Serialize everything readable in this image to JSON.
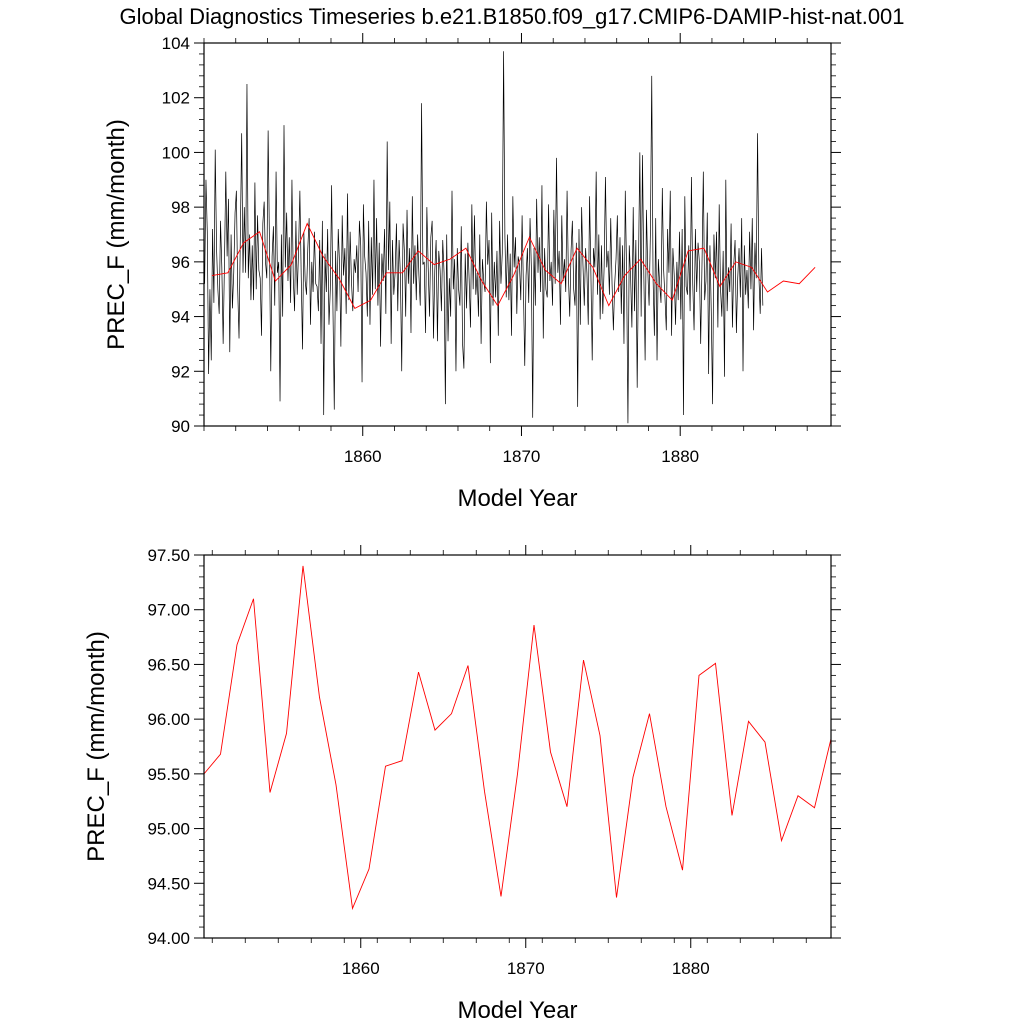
{
  "page": {
    "title": "Global Diagnostics Timeseries b.e21.B1850.f09_g17.CMIP6-DAMIP-hist-nat.001"
  },
  "chart_data": [
    {
      "type": "line",
      "title": "",
      "xlabel": "Model Year",
      "ylabel": "PREC_F (mm/month)",
      "xlim": [
        1850,
        1889.5
      ],
      "ylim": [
        90,
        104
      ],
      "x_ticks": [
        1860,
        1870,
        1880
      ],
      "x_tick_labels": [
        "1860",
        "1870",
        "1880"
      ],
      "y_ticks": [
        90,
        92,
        94,
        96,
        98,
        100,
        102,
        104
      ],
      "y_tick_labels": [
        "90",
        "92",
        "94",
        "96",
        "98",
        "100",
        "102",
        "104"
      ],
      "grid": false,
      "series": [
        {
          "kind": "monthly",
          "color": "#000000",
          "start": 1850.04,
          "step": 0.0833333,
          "values": [
            95.2,
            99.0,
            97.1,
            91.9,
            95.0,
            92.4,
            97.2,
            94.5,
            100.1,
            96.5,
            95.0,
            94.1,
            97.5,
            95.8,
            93.0,
            96.0,
            99.3,
            96.2,
            98.3,
            92.7,
            97.0,
            94.3,
            95.6,
            97.8,
            98.6,
            95.0,
            93.2,
            97.0,
            100.7,
            95.6,
            98.0,
            95.6,
            102.5,
            95.4,
            97.0,
            94.6,
            96.6,
            94.6,
            98.9,
            95.0,
            97.7,
            95.7,
            95.4,
            93.3,
            97.4,
            98.2,
            96.0,
            95.4,
            100.8,
            96.7,
            92.0,
            96.2,
            97.3,
            94.4,
            99.3,
            95.6,
            96.0,
            90.9,
            97.0,
            94.0,
            101.0,
            95.8,
            97.8,
            95.3,
            96.9,
            94.5,
            99.0,
            95.4,
            94.2,
            97.5,
            94.8,
            96.4,
            98.6,
            95.5,
            92.8,
            97.1,
            95.3,
            94.8,
            96.5,
            97.6,
            93.7,
            96.0,
            94.9,
            97.1,
            95.2,
            95.1,
            94.2,
            96.8,
            93.0,
            97.5,
            90.4,
            96.3,
            94.9,
            97.2,
            93.7,
            95.0,
            98.8,
            94.3,
            90.6,
            96.4,
            94.2,
            97.2,
            95.9,
            92.9,
            97.7,
            95.5,
            96.5,
            94.1,
            98.5,
            94.6,
            97.1,
            95.3,
            94.2,
            96.1,
            95.6,
            96.6,
            94.9,
            97.5,
            96.6,
            91.6,
            98.1,
            96.2,
            95.6,
            94.0,
            97.5,
            93.7,
            96.9,
            94.8,
            99.0,
            95.0,
            97.6,
            94.4,
            96.7,
            92.9,
            96.3,
            95.3,
            97.2,
            94.1,
            100.4,
            95.7,
            98.2,
            93.0,
            96.8,
            94.8,
            95.6,
            97.4,
            94.2,
            96.8,
            95.5,
            92.0,
            97.4,
            96.4,
            94.0,
            97.9,
            95.2,
            96.5,
            93.4,
            98.4,
            95.2,
            96.6,
            94.6,
            97.0,
            95.5,
            94.4,
            101.8,
            95.9,
            96.0,
            93.4,
            98.0,
            95.8,
            94.0,
            96.9,
            97.5,
            93.2,
            95.7,
            96.8,
            93.1,
            96.4,
            95.7,
            94.2,
            96.8,
            95.6,
            90.8,
            97.0,
            93.1,
            95.4,
            94.0,
            98.6,
            95.0,
            96.1,
            92.0,
            96.5,
            95.0,
            94.4,
            97.3,
            93.0,
            92.1,
            96.3,
            94.3,
            96.7,
            95.3,
            93.6,
            98.1,
            95.0,
            97.7,
            94.8,
            95.6,
            94.0,
            97.0,
            93.0,
            96.1,
            95.3,
            94.9,
            98.2,
            95.9,
            96.8,
            92.3,
            97.8,
            94.4,
            96.0,
            94.7,
            96.4,
            93.3,
            97.5,
            95.2,
            96.3,
            103.7,
            96.9,
            94.7,
            97.0,
            94.6,
            96.3,
            93.3,
            98.4,
            95.8,
            96.9,
            94.1,
            96.2,
            95.9,
            94.6,
            97.7,
            95.0,
            92.2,
            95.5,
            96.5,
            94.5,
            97.6,
            95.8,
            90.3,
            96.5,
            94.4,
            98.3,
            95.6,
            96.9,
            94.9,
            98.8,
            93.2,
            96.5,
            95.0,
            94.7,
            98.1,
            95.3,
            96.0,
            94.4,
            97.9,
            95.2,
            99.8,
            95.6,
            96.4,
            93.7,
            97.7,
            95.3,
            96.1,
            94.9,
            98.6,
            95.5,
            94.0,
            96.4,
            97.5,
            95.0,
            94.4,
            96.7,
            90.7,
            97.2,
            93.7,
            98.0,
            95.9,
            94.4,
            96.5,
            95.6,
            93.7,
            98.4,
            95.6,
            92.4,
            96.5,
            95.8,
            99.3,
            94.8,
            97.0,
            93.9,
            96.6,
            94.1,
            95.8,
            99.1,
            95.8,
            96.4,
            94.8,
            97.6,
            95.2,
            93.5,
            95.2,
            96.1,
            97.7,
            94.9,
            96.9,
            94.1,
            96.6,
            93.0,
            98.6,
            95.6,
            90.1,
            96.6,
            95.5,
            93.6,
            98.0,
            94.2,
            96.8,
            91.4,
            96.0,
            100.0,
            94.0,
            99.9,
            95.6,
            92.4,
            97.9,
            95.7,
            94.4,
            97.1,
            102.8,
            95.4,
            93.3,
            97.6,
            92.4,
            96.1,
            95.2,
            94.5,
            98.7,
            95.7,
            94.7,
            93.5,
            97.2,
            95.6,
            98.6,
            93.3,
            96.5,
            95.5,
            93.7,
            96.0,
            94.6,
            97.1,
            93.9,
            97.2,
            90.4,
            98.4,
            95.1,
            94.8,
            96.6,
            94.2,
            99.1,
            95.2,
            93.5,
            97.2,
            94.9,
            96.7,
            96.0,
            93.0,
            95.9,
            99.3,
            94.6,
            95.3,
            97.8,
            91.9,
            96.6,
            94.2,
            90.8,
            97.0,
            95.4,
            97.1,
            93.6,
            98.1,
            95.0,
            94.0,
            96.4,
            91.8,
            99.0,
            94.2,
            95.8,
            94.9,
            97.4,
            93.6,
            95.9,
            96.8,
            93.4,
            95.4,
            96.5,
            94.7,
            97.6,
            92.0,
            96.6,
            94.8,
            95.7,
            94.3,
            97.1,
            95.0,
            97.6,
            93.5,
            96.7,
            95.4,
            100.7,
            95.5,
            94.1,
            96.5,
            94.4
          ]
        },
        {
          "kind": "annual",
          "color": "#ff0000",
          "x": [
            1850.5,
            1851.5,
            1852.5,
            1853.5,
            1854.5,
            1855.5,
            1856.5,
            1857.5,
            1858.5,
            1859.5,
            1860.5,
            1861.5,
            1862.5,
            1863.5,
            1864.5,
            1865.5,
            1866.5,
            1867.5,
            1868.5,
            1869.5,
            1870.5,
            1871.5,
            1872.5,
            1873.5,
            1874.5,
            1875.5,
            1876.5,
            1877.5,
            1878.5,
            1879.5,
            1880.5,
            1881.5,
            1882.5,
            1883.5,
            1884.5,
            1885.5,
            1886.5,
            1887.5,
            1888.5
          ],
          "values": [
            95.5,
            95.6,
            96.7,
            97.1,
            95.3,
            95.9,
            97.4,
            96.2,
            95.4,
            94.3,
            94.6,
            95.6,
            95.6,
            96.4,
            95.9,
            96.1,
            96.5,
            95.3,
            94.4,
            95.5,
            96.9,
            95.7,
            95.2,
            96.5,
            95.8,
            94.4,
            95.5,
            96.1,
            95.2,
            94.6,
            96.4,
            96.5,
            95.1,
            96.0,
            95.8,
            94.9,
            95.3,
            95.2,
            95.8
          ]
        }
      ]
    },
    {
      "type": "line",
      "title": "",
      "xlabel": "Model Year",
      "ylabel": "PREC_F (mm/month)",
      "xlim": [
        1850.5,
        1888.5
      ],
      "ylim": [
        94,
        97.5
      ],
      "x_ticks": [
        1860,
        1870,
        1880
      ],
      "x_tick_labels": [
        "1860",
        "1870",
        "1880"
      ],
      "y_ticks": [
        94,
        94.5,
        95,
        95.5,
        96,
        96.5,
        97,
        97.5
      ],
      "y_tick_labels": [
        "94.00",
        "94.50",
        "95.00",
        "95.50",
        "96.00",
        "96.50",
        "97.00",
        "97.50"
      ],
      "grid": false,
      "series": [
        {
          "kind": "annual",
          "color": "#ff0000",
          "x": [
            1850.5,
            1851.5,
            1852.5,
            1853.5,
            1854.5,
            1855.5,
            1856.5,
            1857.5,
            1858.5,
            1859.5,
            1860.5,
            1861.5,
            1862.5,
            1863.5,
            1864.5,
            1865.5,
            1866.5,
            1867.5,
            1868.5,
            1869.5,
            1870.5,
            1871.5,
            1872.5,
            1873.5,
            1874.5,
            1875.5,
            1876.5,
            1877.5,
            1878.5,
            1879.5,
            1880.5,
            1881.5,
            1882.5,
            1883.5,
            1884.5,
            1885.5,
            1886.5,
            1887.5,
            1888.5
          ],
          "values": [
            95.5,
            95.68,
            96.68,
            97.1,
            95.33,
            95.87,
            97.4,
            96.2,
            95.4,
            94.27,
            94.63,
            95.57,
            95.62,
            96.43,
            95.9,
            96.05,
            96.49,
            95.34,
            94.38,
            95.5,
            96.86,
            95.7,
            95.2,
            96.54,
            95.85,
            94.37,
            95.47,
            96.05,
            95.2,
            94.62,
            96.4,
            96.51,
            95.12,
            95.98,
            95.79,
            94.89,
            95.3,
            95.19,
            95.82
          ]
        }
      ]
    }
  ]
}
